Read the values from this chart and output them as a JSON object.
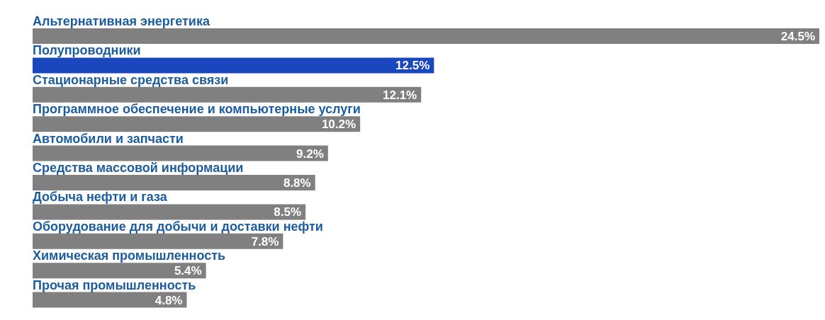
{
  "chart_data": {
    "type": "bar",
    "orientation": "horizontal",
    "value_labels": [
      "24.5%",
      "12.5%",
      "12.1%",
      "10.2%",
      "9.2%",
      "8.8%",
      "8.5%",
      "7.8%",
      "5.4%",
      "4.8%"
    ],
    "categories": [
      "Альтернативная энергетика",
      "Полупроводники",
      "Стационарные средства связи",
      "Программное обеспечение и компьютерные услуги",
      "Автомобили и запчасти",
      "Средства массовой информации",
      "Добыча нефти и газа",
      "Оборудование для добычи и доставки нефти",
      "Химическая промышленность",
      "Прочая промышленность"
    ],
    "values": [
      24.5,
      12.5,
      12.1,
      10.2,
      9.2,
      8.8,
      8.5,
      7.8,
      5.4,
      4.8
    ],
    "colors": [
      "#808080",
      "#1a47bd",
      "#808080",
      "#808080",
      "#808080",
      "#808080",
      "#808080",
      "#808080",
      "#808080",
      "#808080"
    ],
    "grid": false,
    "legend": false
  }
}
